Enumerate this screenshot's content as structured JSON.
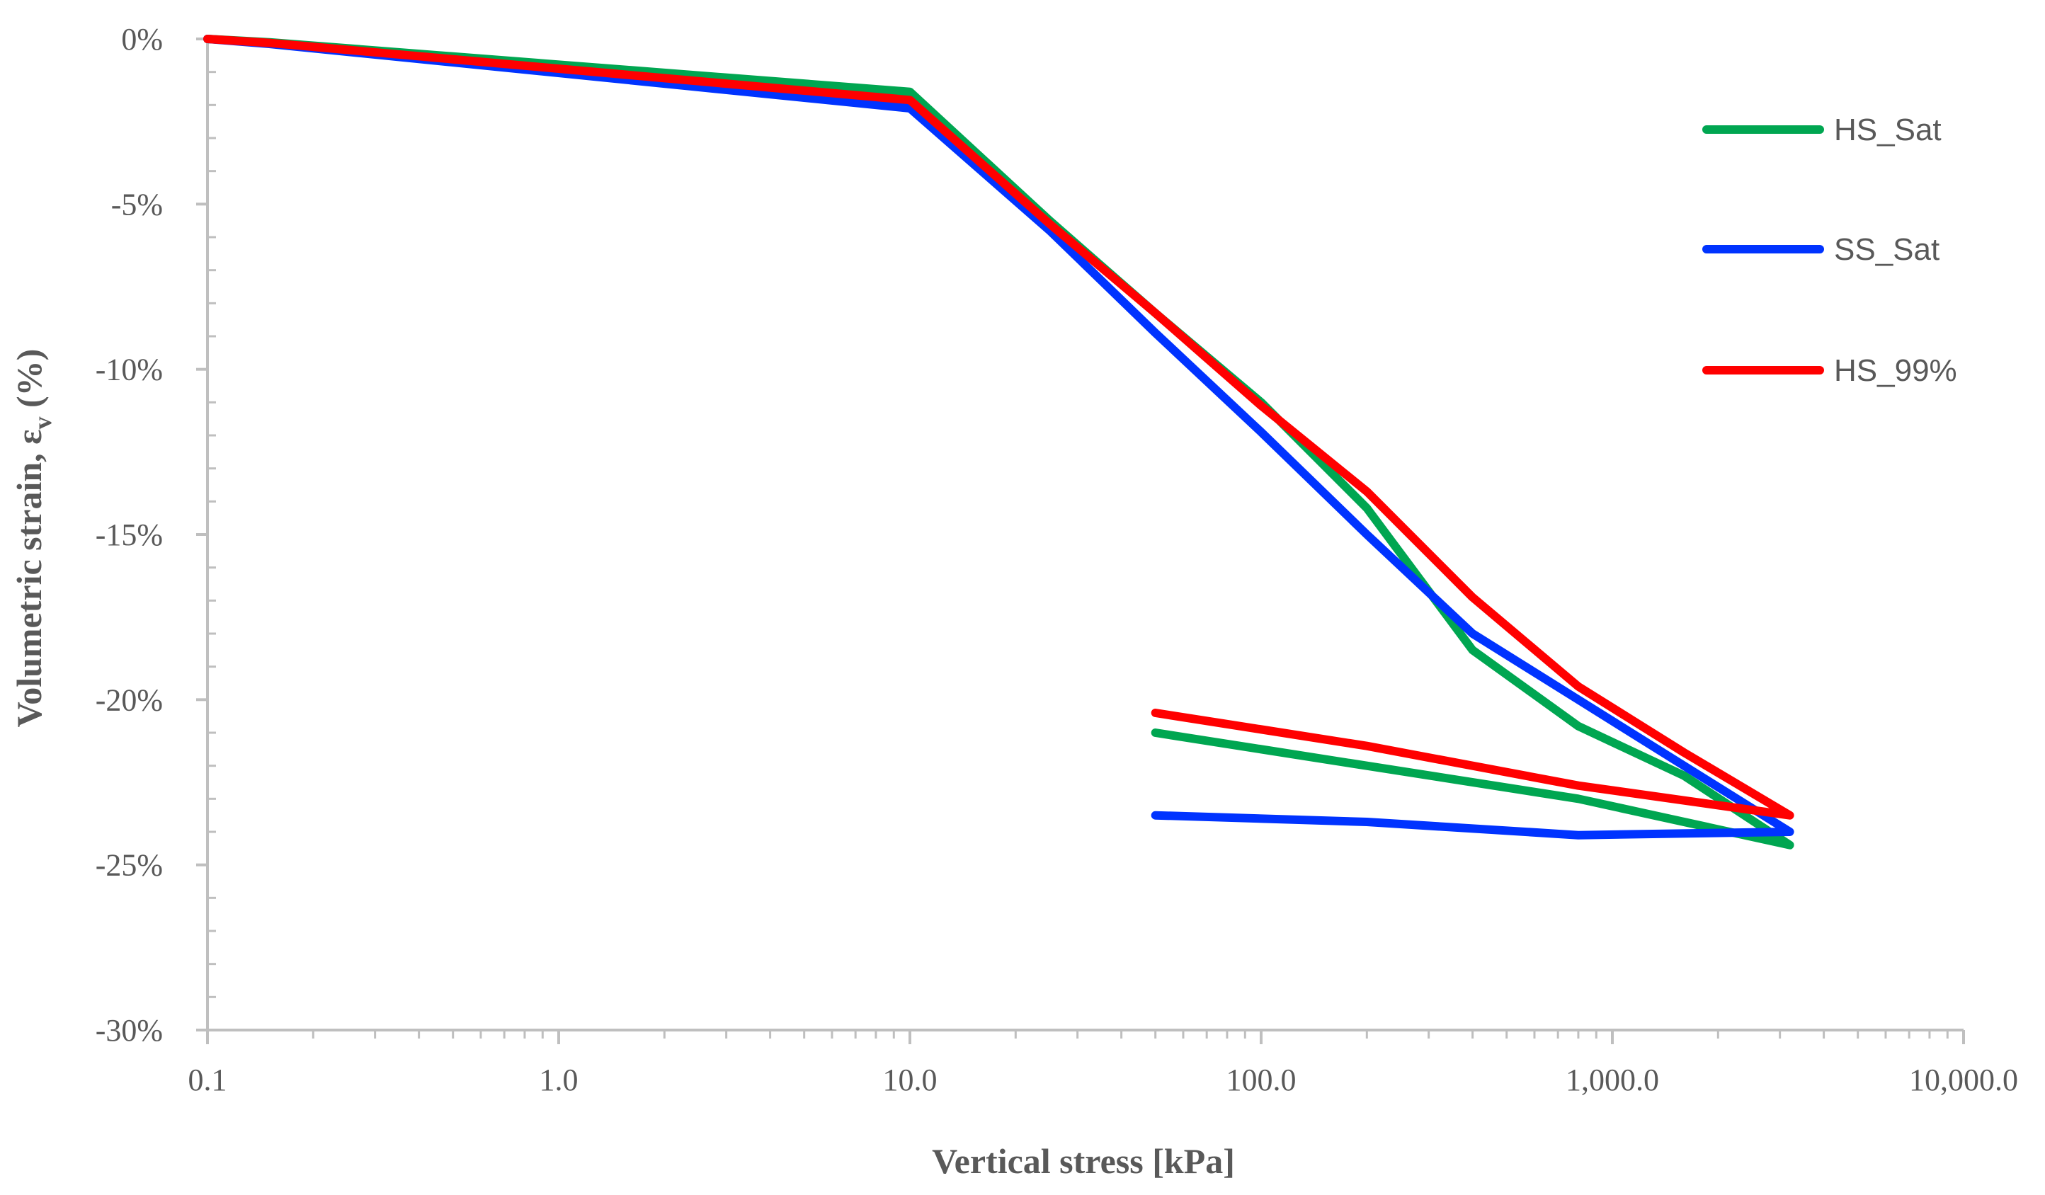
{
  "chart_data": {
    "type": "line",
    "title": "",
    "xlabel": "Vertical stress [kPa]",
    "ylabel_main": "Volumetric strain, ε",
    "ylabel_sub": "v",
    "ylabel_suffix": " (%)",
    "x_scale": "log",
    "xlim": [
      0.1,
      10000
    ],
    "ylim": [
      -30,
      0
    ],
    "x_ticks": [
      {
        "value": 0.1,
        "label": "0.1"
      },
      {
        "value": 1,
        "label": "1.0"
      },
      {
        "value": 10,
        "label": "10.0"
      },
      {
        "value": 100,
        "label": "100.0"
      },
      {
        "value": 1000,
        "label": "1,000.0"
      },
      {
        "value": 10000,
        "label": "10,000.0"
      }
    ],
    "y_ticks": [
      {
        "value": 0,
        "label": "0%"
      },
      {
        "value": -5,
        "label": "-5%"
      },
      {
        "value": -10,
        "label": "-10%"
      },
      {
        "value": -15,
        "label": "-15%"
      },
      {
        "value": -20,
        "label": "-20%"
      },
      {
        "value": -25,
        "label": "-25%"
      },
      {
        "value": -30,
        "label": "-30%"
      }
    ],
    "legend_position": "right",
    "series": [
      {
        "name": "HS_Sat",
        "color": "#00A651",
        "x": [
          0.1,
          0.15,
          10,
          25,
          50,
          100,
          200,
          400,
          800,
          1600,
          3200,
          800,
          200,
          50
        ],
        "y": [
          0,
          -0.1,
          -1.6,
          -5.5,
          -8.3,
          -11.0,
          -14.2,
          -18.5,
          -20.8,
          -22.3,
          -24.4,
          -23.0,
          -22.0,
          -21.0
        ]
      },
      {
        "name": "SS_Sat",
        "color": "#0033FF",
        "x": [
          0.1,
          0.15,
          10,
          25,
          50,
          100,
          200,
          400,
          800,
          1600,
          3200,
          800,
          200,
          50
        ],
        "y": [
          0,
          -0.15,
          -2.1,
          -5.8,
          -8.9,
          -11.9,
          -15.0,
          -18.0,
          -20.0,
          -22.0,
          -24.0,
          -24.1,
          -23.7,
          -23.5
        ]
      },
      {
        "name": "HS_99%",
        "color": "#FF0000",
        "x": [
          0.1,
          0.15,
          10,
          25,
          50,
          100,
          200,
          400,
          800,
          1600,
          3200,
          800,
          200,
          50
        ],
        "y": [
          0,
          -0.12,
          -1.85,
          -5.6,
          -8.3,
          -11.1,
          -13.7,
          -16.9,
          -19.6,
          -21.6,
          -23.5,
          -22.6,
          -21.4,
          -20.4
        ]
      }
    ]
  }
}
